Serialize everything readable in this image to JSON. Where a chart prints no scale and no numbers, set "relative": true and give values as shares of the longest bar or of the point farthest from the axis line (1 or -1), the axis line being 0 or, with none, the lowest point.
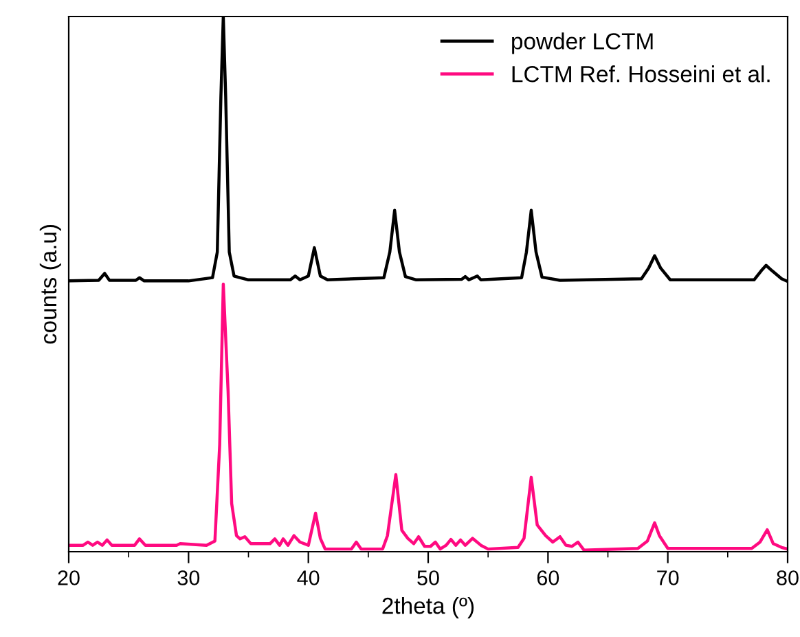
{
  "chart_data": {
    "type": "line",
    "relative": true,
    "xlabel": "2theta (º)",
    "ylabel": "counts (a.u)",
    "xlim": [
      20,
      80
    ],
    "xticks": [
      20,
      30,
      40,
      50,
      60,
      70,
      80
    ],
    "legend": "top right",
    "grid": false,
    "marker": "none",
    "line_style": "solid",
    "series": [
      {
        "name": "powder LCTM",
        "color": "#000000",
        "x": [
          20,
          22.5,
          23.0,
          23.4,
          25.6,
          25.9,
          26.3,
          30,
          32.0,
          32.4,
          32.7,
          32.9,
          33.1,
          33.4,
          33.8,
          35,
          38.5,
          38.9,
          39.3,
          40.0,
          40.5,
          41.0,
          41.6,
          46.3,
          46.8,
          47.2,
          47.6,
          48.1,
          49,
          52.8,
          53.1,
          53.4,
          54.1,
          54.4,
          57.8,
          58.2,
          58.6,
          59.0,
          59.5,
          61,
          67.8,
          68.4,
          68.9,
          69.4,
          70.2,
          77.2,
          77.8,
          78.2,
          78.7,
          79.5,
          80
        ],
        "values": [
          0.506,
          0.507,
          0.52,
          0.507,
          0.507,
          0.512,
          0.506,
          0.506,
          0.512,
          0.56,
          0.85,
          1.0,
          0.85,
          0.56,
          0.515,
          0.508,
          0.508,
          0.515,
          0.508,
          0.515,
          0.568,
          0.515,
          0.508,
          0.512,
          0.56,
          0.638,
          0.56,
          0.514,
          0.508,
          0.509,
          0.514,
          0.508,
          0.515,
          0.508,
          0.512,
          0.56,
          0.638,
          0.56,
          0.513,
          0.507,
          0.51,
          0.53,
          0.553,
          0.53,
          0.508,
          0.508,
          0.525,
          0.535,
          0.525,
          0.51,
          0.505
        ]
      },
      {
        "name": "LCTM Ref. Hosseini et al.",
        "color": "#ff0a80",
        "x": [
          20,
          21.2,
          21.6,
          22.0,
          22.4,
          22.8,
          23.2,
          23.6,
          25.5,
          25.9,
          26.4,
          29,
          29.3,
          31.5,
          32.2,
          32.6,
          32.9,
          33.3,
          33.6,
          34.0,
          34.3,
          34.7,
          35.2,
          36.8,
          37.2,
          37.6,
          37.9,
          38.3,
          38.8,
          39.3,
          40.0,
          40.6,
          41.0,
          41.4,
          43.6,
          44.0,
          44.4,
          46.2,
          46.6,
          47.3,
          47.8,
          48.3,
          48.8,
          49.2,
          49.7,
          50.2,
          50.6,
          51.0,
          51.5,
          51.9,
          52.3,
          52.7,
          53.1,
          53.7,
          54.4,
          55,
          57.5,
          58.0,
          58.6,
          59.1,
          59.8,
          60.4,
          61.0,
          61.5,
          62.0,
          62.5,
          63.0,
          67.5,
          68.3,
          68.9,
          69.3,
          70.0,
          77.0,
          77.7,
          78.3,
          78.8,
          79.5,
          80
        ],
        "values": [
          0.012,
          0.012,
          0.018,
          0.012,
          0.018,
          0.012,
          0.022,
          0.012,
          0.012,
          0.024,
          0.012,
          0.012,
          0.015,
          0.012,
          0.02,
          0.2,
          0.5,
          0.3,
          0.09,
          0.03,
          0.024,
          0.028,
          0.015,
          0.015,
          0.024,
          0.012,
          0.024,
          0.012,
          0.03,
          0.018,
          0.012,
          0.072,
          0.025,
          0.005,
          0.005,
          0.018,
          0.005,
          0.005,
          0.03,
          0.144,
          0.04,
          0.025,
          0.015,
          0.028,
          0.01,
          0.01,
          0.018,
          0.005,
          0.012,
          0.023,
          0.012,
          0.022,
          0.012,
          0.025,
          0.012,
          0.005,
          0.008,
          0.025,
          0.139,
          0.05,
          0.03,
          0.018,
          0.028,
          0.012,
          0.01,
          0.018,
          0.003,
          0.006,
          0.02,
          0.054,
          0.03,
          0.006,
          0.006,
          0.018,
          0.041,
          0.015,
          0.008,
          0.005
        ]
      }
    ]
  }
}
